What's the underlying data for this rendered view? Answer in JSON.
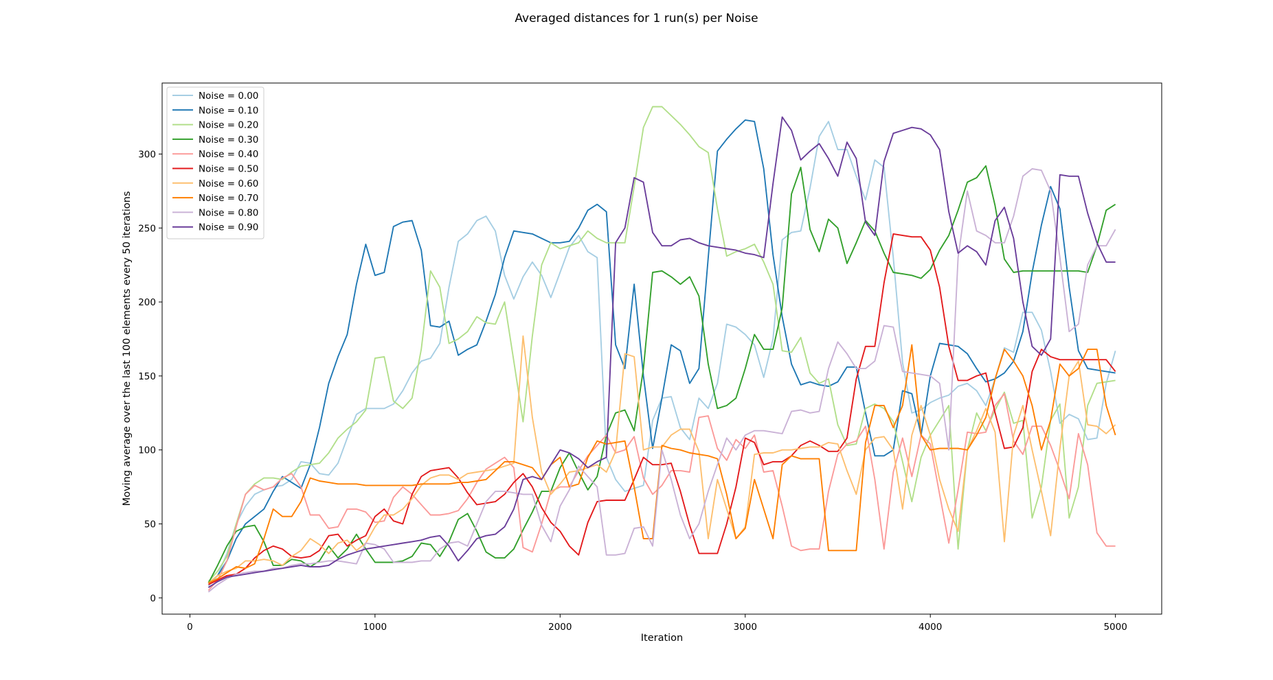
{
  "chart_data": {
    "type": "line",
    "title": "Averaged distances for 1 run(s) per Noise",
    "xlabel": "Iteration",
    "ylabel": "Moving average over the last 100 elements every 50 iterations",
    "xlim": [
      -150,
      5250
    ],
    "ylim": [
      -11,
      348
    ],
    "xticks": [
      0,
      1000,
      2000,
      3000,
      4000,
      5000
    ],
    "yticks": [
      0,
      50,
      100,
      150,
      200,
      250,
      300
    ],
    "legend_position": "top-left",
    "grid": false,
    "x": [
      100,
      150,
      200,
      250,
      300,
      350,
      400,
      450,
      500,
      550,
      600,
      650,
      700,
      750,
      800,
      850,
      900,
      950,
      1000,
      1050,
      1100,
      1150,
      1200,
      1250,
      1300,
      1350,
      1400,
      1450,
      1500,
      1550,
      1600,
      1650,
      1700,
      1750,
      1800,
      1850,
      1900,
      1950,
      2000,
      2050,
      2100,
      2150,
      2200,
      2250,
      2300,
      2350,
      2400,
      2450,
      2500,
      2550,
      2600,
      2650,
      2700,
      2750,
      2800,
      2850,
      2900,
      2950,
      3000,
      3050,
      3100,
      3150,
      3200,
      3250,
      3300,
      3350,
      3400,
      3450,
      3500,
      3550,
      3600,
      3650,
      3700,
      3750,
      3800,
      3850,
      3900,
      3950,
      4000,
      4050,
      4100,
      4150,
      4200,
      4250,
      4300,
      4350,
      4400,
      4450,
      4500,
      4550,
      4600,
      4650,
      4700,
      4750,
      4800,
      4850,
      4900,
      4950,
      5000
    ],
    "series": [
      {
        "name": "Noise = 0.00",
        "color": "#a6cee3",
        "values": [
          8,
          15,
          30,
          50,
          62,
          70,
          73,
          75,
          76,
          80,
          92,
          91,
          84,
          83,
          91,
          108,
          124,
          128,
          128,
          128,
          131,
          140,
          152,
          160,
          162,
          172,
          210,
          241,
          246,
          255,
          258,
          248,
          218,
          202,
          217,
          227,
          218,
          203,
          220,
          237,
          245,
          234,
          230,
          95,
          80,
          72,
          74,
          76,
          120,
          135,
          136,
          115,
          107,
          135,
          128,
          145,
          185,
          183,
          178,
          171,
          149,
          175,
          242,
          247,
          248,
          277,
          312,
          322,
          303,
          303,
          285,
          269,
          296,
          291,
          230,
          159,
          125,
          127,
          132,
          135,
          137,
          143,
          145,
          140,
          130,
          148,
          169,
          166,
          193,
          193,
          181,
          153,
          118,
          124,
          121,
          107,
          108,
          145,
          167
        ]
      },
      {
        "name": "Noise = 0.10",
        "color": "#1f78b4",
        "values": [
          10,
          15,
          25,
          40,
          50,
          55,
          60,
          72,
          82,
          78,
          74,
          90,
          115,
          145,
          163,
          178,
          212,
          239,
          218,
          220,
          251,
          254,
          255,
          235,
          184,
          183,
          187,
          164,
          168,
          171,
          187,
          205,
          230,
          248,
          247,
          246,
          243,
          240,
          240,
          241,
          250,
          262,
          266,
          261,
          171,
          155,
          212,
          150,
          101,
          135,
          171,
          167,
          145,
          155,
          230,
          302,
          310,
          317,
          323,
          322,
          290,
          232,
          190,
          158,
          144,
          146,
          144,
          143,
          146,
          156,
          156,
          125,
          96,
          96,
          100,
          140,
          138,
          110,
          150,
          172,
          171,
          170,
          165,
          155,
          146,
          148,
          152,
          160,
          180,
          220,
          252,
          278,
          263,
          210,
          167,
          155,
          154,
          153,
          152
        ]
      },
      {
        "name": "Noise = 0.20",
        "color": "#b2df8a",
        "values": [
          11,
          18,
          28,
          50,
          70,
          77,
          81,
          81,
          80,
          85,
          89,
          90,
          91,
          98,
          108,
          114,
          119,
          127,
          162,
          163,
          133,
          128,
          135,
          168,
          221,
          210,
          172,
          175,
          180,
          190,
          186,
          185,
          200,
          160,
          119,
          177,
          225,
          240,
          236,
          238,
          240,
          248,
          243,
          240,
          240,
          240,
          278,
          318,
          332,
          332,
          326,
          320,
          313,
          305,
          301,
          263,
          231,
          234,
          236,
          239,
          227,
          212,
          167,
          166,
          176,
          152,
          145,
          148,
          117,
          103,
          104,
          128,
          131,
          128,
          119,
          92,
          65,
          95,
          110,
          120,
          130,
          33,
          100,
          125,
          113,
          127,
          139,
          118,
          120,
          54,
          75,
          120,
          131,
          54,
          75,
          130,
          145,
          146,
          147
        ]
      },
      {
        "name": "Noise = 0.30",
        "color": "#33a02c",
        "values": [
          10,
          22,
          35,
          45,
          48,
          49,
          38,
          22,
          22,
          26,
          25,
          21,
          25,
          35,
          27,
          33,
          43,
          33,
          24,
          24,
          24,
          25,
          28,
          37,
          36,
          28,
          38,
          53,
          57,
          45,
          31,
          27,
          27,
          33,
          46,
          58,
          72,
          72,
          88,
          98,
          85,
          73,
          82,
          110,
          125,
          127,
          113,
          155,
          220,
          221,
          217,
          212,
          217,
          204,
          158,
          128,
          130,
          135,
          155,
          178,
          168,
          168,
          196,
          273,
          291,
          249,
          234,
          256,
          250,
          226,
          240,
          255,
          248,
          233,
          220,
          219,
          218,
          216,
          222,
          235,
          245,
          262,
          281,
          284,
          292,
          265,
          229,
          220,
          221,
          221,
          221,
          221,
          221,
          221,
          221,
          220,
          238,
          262,
          266
        ]
      },
      {
        "name": "Noise = 0.40",
        "color": "#fb9a99",
        "values": [
          5,
          12,
          25,
          48,
          70,
          76,
          73,
          75,
          81,
          84,
          75,
          56,
          56,
          47,
          48,
          60,
          60,
          58,
          51,
          52,
          68,
          75,
          70,
          63,
          56,
          56,
          57,
          59,
          67,
          78,
          87,
          91,
          95,
          88,
          34,
          31,
          50,
          72,
          75,
          75,
          86,
          96,
          103,
          110,
          98,
          100,
          109,
          81,
          70,
          76,
          86,
          86,
          85,
          122,
          123,
          101,
          93,
          107,
          101,
          110,
          85,
          86,
          62,
          35,
          32,
          33,
          33,
          72,
          97,
          104,
          106,
          116,
          80,
          33,
          85,
          108,
          82,
          110,
          104,
          70,
          37,
          73,
          112,
          111,
          112,
          130,
          138,
          106,
          97,
          116,
          116,
          103,
          86,
          67,
          111,
          90,
          44,
          35,
          35
        ]
      },
      {
        "name": "Noise = 0.50",
        "color": "#e31a1c",
        "values": [
          9,
          12,
          15,
          16,
          20,
          27,
          32,
          35,
          33,
          28,
          27,
          28,
          32,
          42,
          43,
          35,
          39,
          42,
          55,
          60,
          52,
          50,
          70,
          82,
          86,
          87,
          88,
          81,
          71,
          63,
          64,
          65,
          70,
          78,
          84,
          75,
          61,
          51,
          45,
          35,
          29,
          51,
          65,
          66,
          66,
          66,
          80,
          95,
          90,
          90,
          91,
          72,
          49,
          30,
          30,
          30,
          50,
          75,
          108,
          105,
          90,
          92,
          92,
          96,
          103,
          106,
          103,
          99,
          99,
          108,
          148,
          170,
          170,
          213,
          246,
          245,
          244,
          244,
          235,
          210,
          170,
          147,
          147,
          150,
          152,
          125,
          101,
          102,
          115,
          153,
          168,
          163,
          161,
          161,
          161,
          161,
          161,
          161,
          153
        ]
      },
      {
        "name": "Noise = 0.60",
        "color": "#fdbf6f",
        "values": [
          10,
          15,
          18,
          20,
          25,
          25,
          26,
          25,
          22,
          28,
          32,
          40,
          36,
          30,
          37,
          39,
          32,
          37,
          48,
          56,
          56,
          60,
          67,
          76,
          81,
          83,
          83,
          80,
          84,
          85,
          86,
          87,
          89,
          91,
          177,
          122,
          85,
          70,
          77,
          85,
          86,
          88,
          90,
          85,
          99,
          165,
          163,
          100,
          102,
          102,
          110,
          114,
          114,
          99,
          40,
          80,
          60,
          40,
          48,
          97,
          98,
          98,
          100,
          100,
          101,
          102,
          102,
          105,
          104,
          86,
          70,
          100,
          108,
          109,
          100,
          60,
          110,
          130,
          110,
          80,
          60,
          45,
          100,
          113,
          128,
          112,
          38,
          110,
          130,
          100,
          72,
          42,
          101,
          150,
          160,
          117,
          116,
          111,
          117
        ]
      },
      {
        "name": "Noise = 0.70",
        "color": "#ff7f00",
        "values": [
          10,
          13,
          17,
          21,
          20,
          23,
          40,
          60,
          55,
          55,
          65,
          81,
          79,
          78,
          77,
          77,
          77,
          76,
          76,
          76,
          76,
          76,
          76,
          77,
          77,
          77,
          77,
          78,
          78,
          79,
          80,
          86,
          92,
          92,
          90,
          88,
          80,
          90,
          95,
          75,
          77,
          95,
          106,
          104,
          105,
          106,
          75,
          40,
          40,
          103,
          101,
          100,
          98,
          97,
          96,
          94,
          70,
          40,
          47,
          80,
          60,
          40,
          90,
          96,
          94,
          94,
          94,
          32,
          32,
          32,
          32,
          105,
          130,
          130,
          115,
          130,
          171,
          110,
          100,
          101,
          101,
          101,
          100,
          110,
          122,
          148,
          168,
          160,
          150,
          130,
          100,
          120,
          158,
          150,
          155,
          168,
          168,
          130,
          110
        ]
      },
      {
        "name": "Noise = 0.80",
        "color": "#cab2d6",
        "values": [
          4,
          9,
          13,
          16,
          17,
          18,
          18,
          20,
          20,
          22,
          23,
          23,
          24,
          25,
          25,
          24,
          23,
          37,
          36,
          33,
          24,
          24,
          24,
          25,
          25,
          33,
          37,
          38,
          35,
          50,
          65,
          72,
          72,
          71,
          70,
          70,
          49,
          38,
          62,
          73,
          89,
          82,
          75,
          29,
          29,
          30,
          47,
          48,
          35,
          100,
          80,
          56,
          40,
          50,
          72,
          90,
          108,
          100,
          110,
          113,
          113,
          112,
          111,
          126,
          127,
          125,
          126,
          155,
          173,
          165,
          155,
          155,
          160,
          184,
          183,
          153,
          152,
          151,
          150,
          145,
          100,
          230,
          275,
          248,
          245,
          240,
          240,
          258,
          285,
          290,
          289,
          275,
          230,
          180,
          185,
          225,
          238,
          238,
          249
        ]
      },
      {
        "name": "Noise = 0.90",
        "color": "#6a3d9a",
        "values": [
          7,
          11,
          14,
          15,
          16,
          17,
          18,
          19,
          20,
          21,
          22,
          21,
          21,
          22,
          26,
          29,
          31,
          33,
          34,
          35,
          36,
          37,
          38,
          39,
          41,
          42,
          35,
          25,
          32,
          40,
          42,
          43,
          48,
          60,
          80,
          82,
          80,
          90,
          100,
          98,
          94,
          88,
          92,
          95,
          240,
          250,
          284,
          281,
          247,
          238,
          238,
          242,
          243,
          240,
          238,
          237,
          236,
          235,
          233,
          232,
          230,
          280,
          325,
          316,
          296,
          302,
          307,
          297,
          285,
          308,
          297,
          254,
          245,
          295,
          314,
          316,
          318,
          317,
          313,
          303,
          261,
          233,
          238,
          234,
          225,
          255,
          264,
          243,
          200,
          170,
          164,
          175,
          286,
          285,
          285,
          260,
          240,
          227,
          227
        ]
      }
    ]
  }
}
